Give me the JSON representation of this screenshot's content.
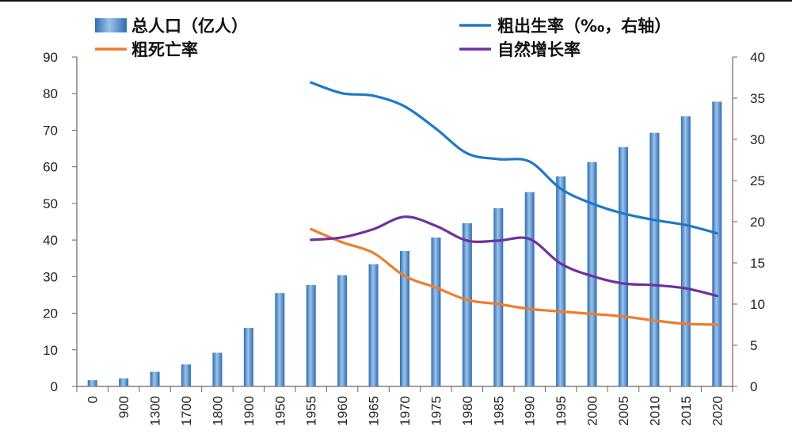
{
  "chart_data": {
    "type": "bar+line",
    "categories": [
      "0",
      "900",
      "1300",
      "1700",
      "1800",
      "1900",
      "1950",
      "1955",
      "1960",
      "1965",
      "1970",
      "1975",
      "1980",
      "1985",
      "1990",
      "1995",
      "2000",
      "2005",
      "2010",
      "2015",
      "2020"
    ],
    "left_axis": {
      "ylim": [
        0,
        90
      ],
      "ticks": [
        0,
        10,
        20,
        30,
        40,
        50,
        60,
        70,
        80,
        90
      ]
    },
    "right_axis": {
      "ylim": [
        0,
        40
      ],
      "ticks": [
        0,
        5,
        10,
        15,
        20,
        25,
        30,
        35,
        40
      ]
    },
    "bar_series": {
      "name": "总人口（亿人）",
      "axis": "left",
      "color": "#4a86c6",
      "values": [
        1.7,
        2.2,
        4.0,
        6.0,
        9.2,
        16.0,
        25.5,
        27.7,
        30.4,
        33.4,
        37.0,
        40.7,
        44.6,
        48.7,
        53.1,
        57.4,
        61.3,
        65.4,
        69.3,
        73.8,
        77.8
      ]
    },
    "line_series": [
      {
        "name": "粗出生率（‰，右轴）",
        "axis": "right",
        "color": "#1f78c8",
        "points": [
          [
            "1955",
            36.9
          ],
          [
            "1960",
            35.6
          ],
          [
            "1965",
            35.3
          ],
          [
            "1970",
            34.0
          ],
          [
            "1975",
            31.3
          ],
          [
            "1980",
            28.3
          ],
          [
            "1985",
            27.6
          ],
          [
            "1990",
            27.3
          ],
          [
            "1995",
            24.0
          ],
          [
            "2000",
            22.2
          ],
          [
            "2005",
            21.0
          ],
          [
            "2010",
            20.2
          ],
          [
            "2015",
            19.6
          ],
          [
            "2020",
            18.6
          ]
        ]
      },
      {
        "name": "粗死亡率",
        "axis": "right",
        "color": "#ed7d31",
        "points": [
          [
            "1955",
            19.1
          ],
          [
            "1960",
            17.5
          ],
          [
            "1965",
            16.2
          ],
          [
            "1970",
            13.4
          ],
          [
            "1975",
            12.0
          ],
          [
            "1980",
            10.5
          ],
          [
            "1985",
            10.0
          ],
          [
            "1990",
            9.4
          ],
          [
            "1995",
            9.1
          ],
          [
            "2000",
            8.8
          ],
          [
            "2005",
            8.5
          ],
          [
            "2010",
            8.0
          ],
          [
            "2015",
            7.6
          ],
          [
            "2020",
            7.5
          ]
        ]
      },
      {
        "name": "自然增长率",
        "axis": "right",
        "color": "#7030a0",
        "points": [
          [
            "1955",
            17.8
          ],
          [
            "1960",
            18.1
          ],
          [
            "1965",
            19.1
          ],
          [
            "1970",
            20.6
          ],
          [
            "1975",
            19.5
          ],
          [
            "1980",
            17.7
          ],
          [
            "1985",
            17.7
          ],
          [
            "1990",
            17.9
          ],
          [
            "1995",
            14.9
          ],
          [
            "2000",
            13.4
          ],
          [
            "2005",
            12.5
          ],
          [
            "2010",
            12.3
          ],
          [
            "2015",
            11.9
          ],
          [
            "2020",
            11.0
          ]
        ]
      }
    ],
    "legend": [
      {
        "label": "总人口（亿人）",
        "kind": "bar",
        "color": "#4a86c6"
      },
      {
        "label": "粗出生率（‰，右轴）",
        "kind": "line",
        "color": "#1f78c8"
      },
      {
        "label": "粗死亡率",
        "kind": "line",
        "color": "#ed7d31"
      },
      {
        "label": "自然增长率",
        "kind": "line",
        "color": "#7030a0"
      }
    ],
    "legend_placement": "top",
    "grid": false
  }
}
